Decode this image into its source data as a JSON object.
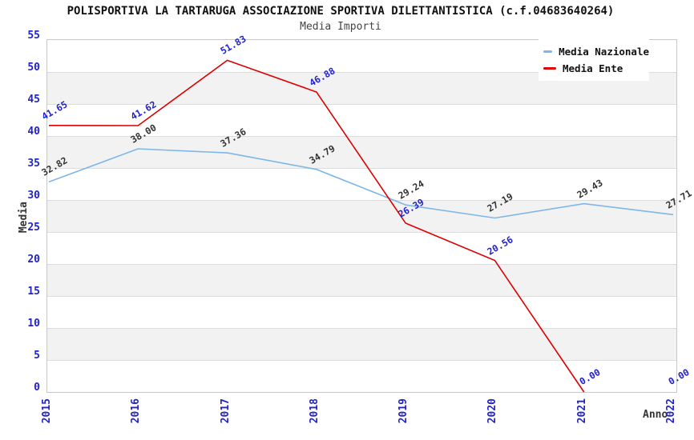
{
  "title": "POLISPORTIVA LA TARTARUGA ASSOCIAZIONE SPORTIVA DILETTANTISTICA (c.f.04683640264)",
  "subtitle": "Media Importi",
  "colors": {
    "nazionale_line": "#7eb6e8",
    "ente_line": "#dd0000",
    "tick_label": "#2222cc",
    "nazionale_datalabel": "#333333",
    "ente_datalabel": "#2222cc",
    "band_gray": "#f2f2f2",
    "gridline": "#dcdcdc",
    "plot_border": "#c8c8c8",
    "title_text": "#111111",
    "subtitle_text": "#444444",
    "axis_title_text": "#333333"
  },
  "chart_data": {
    "type": "line",
    "x": [
      "2015",
      "2016",
      "2017",
      "2018",
      "2019",
      "2020",
      "2021",
      "2022"
    ],
    "series": [
      {
        "name": "Media Nazionale",
        "color": "#7eb6e8",
        "label_color": "#333333",
        "values": [
          32.82,
          38.0,
          37.36,
          34.79,
          29.24,
          27.19,
          29.43,
          27.71
        ]
      },
      {
        "name": "Media Ente",
        "color": "#dd0000",
        "label_color": "#2222cc",
        "values": [
          41.65,
          41.62,
          51.83,
          46.88,
          26.39,
          20.56,
          0.0,
          0.0
        ]
      }
    ],
    "xlabel": "Anno",
    "ylabel": "Media",
    "ylim": [
      0,
      55
    ],
    "ytick_step": 5,
    "grid": "horizontal-bands",
    "legend_position": "top-right",
    "notes": "red series segment between the two 0.00 points is not drawn"
  }
}
